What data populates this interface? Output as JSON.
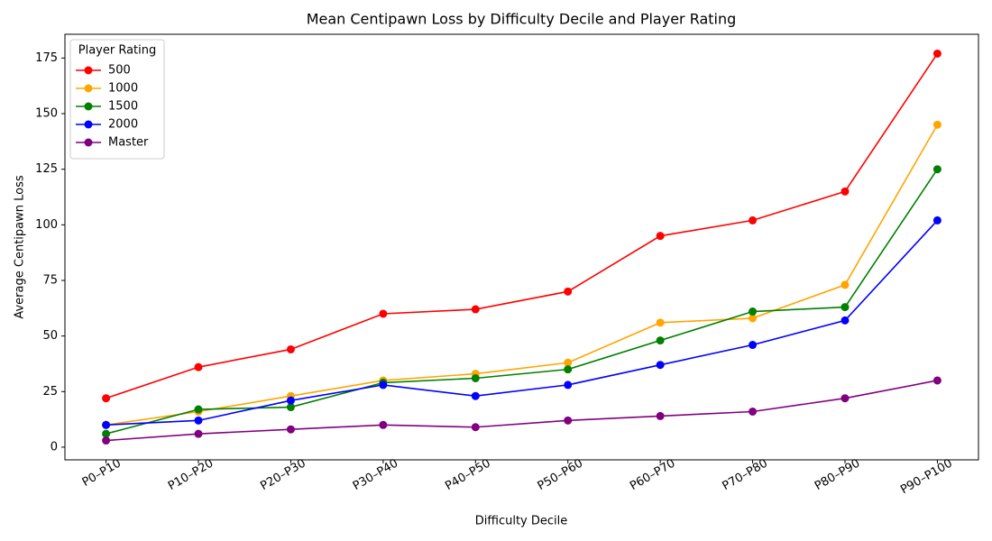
{
  "chart_data": {
    "type": "line",
    "title": "Mean Centipawn Loss by Difficulty Decile and Player Rating",
    "x_label": "Difficulty Decile",
    "y_label": "Average Centipawn Loss",
    "legend_title": "Player Rating",
    "legend_position": "upper left",
    "categories": [
      "P0–P10",
      "P10–P20",
      "P20–P30",
      "P30–P40",
      "P40–P50",
      "P50–P60",
      "P60–P70",
      "P70–P80",
      "P80–P90",
      "P90–P100"
    ],
    "series": [
      {
        "name": "500",
        "color": "red",
        "values": [
          22,
          36,
          44,
          60,
          62,
          70,
          95,
          102,
          115,
          177
        ]
      },
      {
        "name": "1000",
        "color": "orange",
        "values": [
          10,
          16,
          23,
          30,
          33,
          38,
          56,
          58,
          73,
          145
        ]
      },
      {
        "name": "1500",
        "color": "green",
        "values": [
          6,
          17,
          18,
          29,
          31,
          35,
          48,
          61,
          63,
          125
        ]
      },
      {
        "name": "2000",
        "color": "blue",
        "values": [
          10,
          12,
          21,
          28,
          23,
          28,
          37,
          46,
          57,
          102
        ]
      },
      {
        "name": "Master",
        "color": "purple",
        "values": [
          3,
          6,
          8,
          10,
          9,
          12,
          14,
          16,
          22,
          30
        ]
      }
    ],
    "ylim": [
      -5.7,
      185.7
    ],
    "yticks": [
      0,
      25,
      50,
      75,
      100,
      125,
      150,
      175
    ],
    "grid": false
  }
}
